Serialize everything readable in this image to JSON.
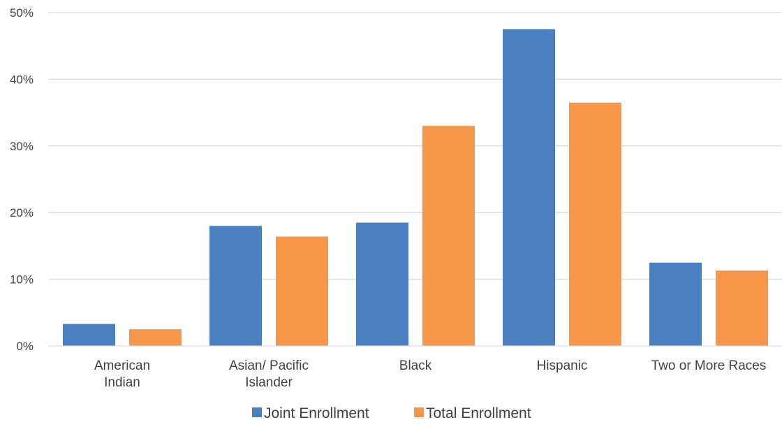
{
  "chart_data": {
    "type": "bar",
    "title": "",
    "xlabel": "",
    "ylabel": "",
    "categories": [
      [
        "American",
        "Indian"
      ],
      [
        "Asian/ Pacific",
        "Islander"
      ],
      [
        "Black"
      ],
      [
        "Hispanic"
      ],
      [
        "Two or More Races"
      ]
    ],
    "series": [
      {
        "name": "Joint Enrollment",
        "color": "#4a7fc1",
        "values": [
          3.3,
          18.0,
          18.5,
          47.5,
          12.5
        ]
      },
      {
        "name": "Total Enrollment",
        "color": "#f79646",
        "values": [
          2.5,
          16.4,
          33.0,
          36.5,
          11.3
        ]
      }
    ],
    "ylim": [
      0,
      50
    ],
    "y_ticks": [
      0,
      10,
      20,
      30,
      40,
      50
    ],
    "y_tick_suffix": "%",
    "grid": true,
    "legend_position": "bottom-center"
  }
}
